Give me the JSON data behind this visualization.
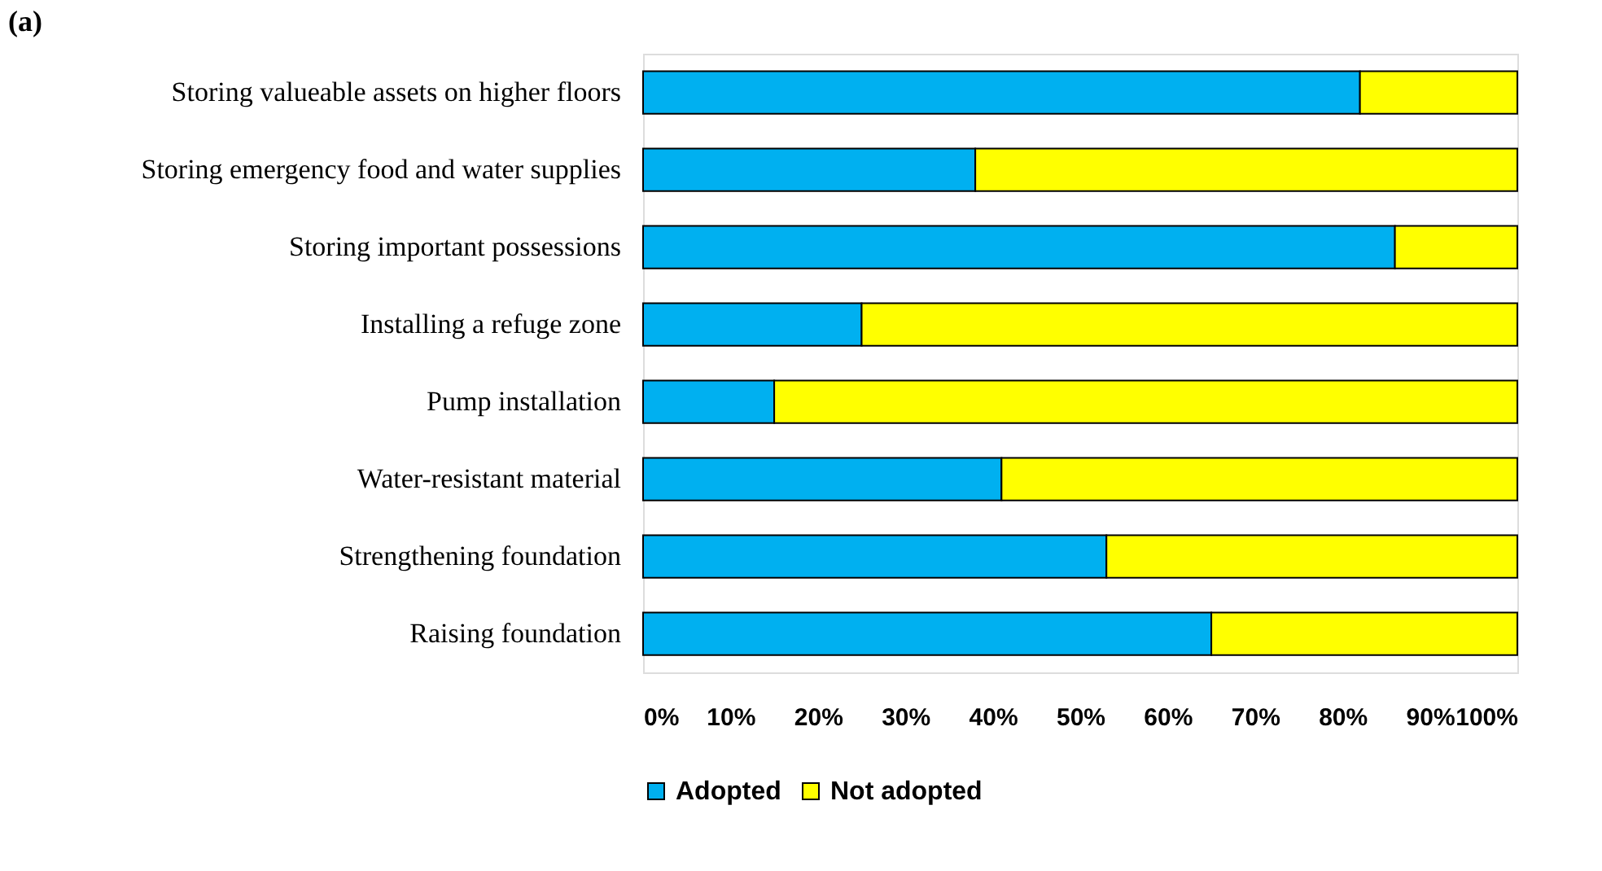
{
  "chart_data": {
    "type": "bar",
    "orientation": "horizontal",
    "stacked": true,
    "title": "(a)",
    "categories": [
      "Storing valueable assets on higher floors",
      "Storing emergency food and water supplies",
      "Storing important possessions",
      "Installing a refuge zone",
      "Pump installation",
      "Water-resistant material",
      "Strengthening foundation",
      "Raising foundation"
    ],
    "series": [
      {
        "name": "Adopted",
        "color": "#00b0f0",
        "values": [
          82,
          38,
          86,
          25,
          15,
          41,
          53,
          65
        ]
      },
      {
        "name": "Not adopted",
        "color": "#ffff00",
        "values": [
          18,
          62,
          14,
          75,
          85,
          59,
          47,
          35
        ]
      }
    ],
    "xlim": [
      0,
      100
    ],
    "xticks": [
      {
        "value": 0,
        "label": "0%"
      },
      {
        "value": 10,
        "label": "10%"
      },
      {
        "value": 20,
        "label": "20%"
      },
      {
        "value": 30,
        "label": "30%"
      },
      {
        "value": 40,
        "label": "40%"
      },
      {
        "value": 50,
        "label": "50%"
      },
      {
        "value": 60,
        "label": "60%"
      },
      {
        "value": 70,
        "label": "70%"
      },
      {
        "value": 80,
        "label": "80%"
      },
      {
        "value": 90,
        "label": "90%"
      },
      {
        "value": 100,
        "label": "100%"
      }
    ],
    "grid": false,
    "legend": "bottom"
  }
}
